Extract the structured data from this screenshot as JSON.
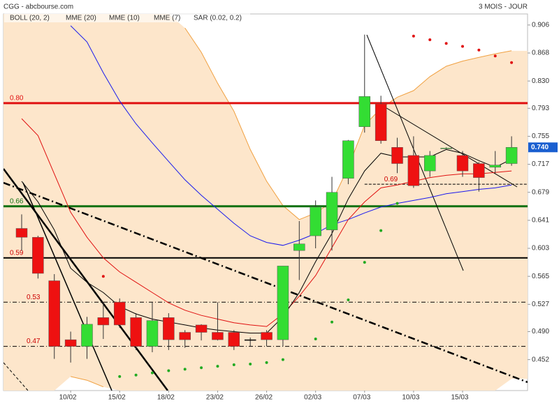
{
  "chart_data": {
    "type": "candlestick",
    "title": "CGG - abcbourse.com",
    "subtitle": "3 MOIS - JOUR",
    "categories": [
      null,
      null,
      null,
      "10/02",
      null,
      null,
      "15/02",
      null,
      null,
      "18/02",
      null,
      null,
      "23/02",
      null,
      null,
      "26/02",
      null,
      null,
      "02/03",
      null,
      null,
      "07/03",
      null,
      null,
      "10/03",
      null,
      null,
      "15/03",
      null,
      null,
      null
    ],
    "open": [
      0.63,
      0.618,
      0.559,
      0.479,
      0.47,
      0.509,
      0.53,
      0.509,
      0.47,
      0.509,
      0.489,
      0.499,
      0.489,
      0.489,
      0.479,
      0.489,
      0.479,
      0.6,
      0.62,
      0.628,
      0.698,
      0.768,
      0.799,
      0.74,
      0.729,
      0.708,
      0.738,
      0.729,
      0.718,
      0.713,
      0.718
    ],
    "high": [
      0.649,
      0.62,
      0.568,
      0.49,
      0.51,
      0.53,
      0.535,
      0.515,
      0.53,
      0.515,
      0.492,
      0.5,
      0.53,
      0.492,
      0.482,
      0.492,
      0.579,
      0.64,
      0.668,
      0.7,
      0.75,
      0.893,
      0.81,
      0.753,
      0.755,
      0.735,
      0.74,
      0.735,
      0.72,
      0.735,
      0.755
    ],
    "low": [
      0.6,
      0.562,
      0.453,
      0.448,
      0.453,
      0.48,
      0.495,
      0.465,
      0.462,
      0.465,
      0.468,
      0.478,
      0.478,
      0.465,
      0.47,
      0.47,
      0.47,
      0.56,
      0.603,
      0.6,
      0.69,
      0.76,
      0.745,
      0.705,
      0.685,
      0.7,
      0.737,
      0.7,
      0.68,
      0.705,
      0.715
    ],
    "close": [
      0.618,
      0.569,
      0.47,
      0.47,
      0.5,
      0.499,
      0.499,
      0.47,
      0.505,
      0.479,
      0.479,
      0.489,
      0.479,
      0.47,
      0.479,
      0.479,
      0.579,
      0.609,
      0.659,
      0.679,
      0.749,
      0.809,
      0.749,
      0.718,
      0.688,
      0.729,
      0.739,
      0.708,
      0.699,
      0.716,
      0.74
    ],
    "up_color": "#33dd33",
    "down_color": "#ee1111",
    "bollinger": {
      "name": "BOLL (20, 2)",
      "color": "#f0a040",
      "fill": "#fde6cb",
      "upper": [
        null,
        null,
        null,
        null,
        null,
        null,
        null,
        null,
        null,
        null,
        0.902,
        0.869,
        0.827,
        0.789,
        0.737,
        0.694,
        0.661,
        0.642,
        0.651,
        0.666,
        0.713,
        0.77,
        0.793,
        0.808,
        0.817,
        0.836,
        0.85,
        0.857,
        0.862,
        0.867,
        0.871
      ],
      "lower": [
        null,
        null,
        null,
        0.429,
        0.424,
        0.415,
        null,
        null,
        null,
        null,
        null,
        null,
        null,
        null,
        null,
        null,
        null,
        null,
        null,
        null,
        null,
        null,
        null,
        null,
        null,
        null,
        null,
        null,
        null,
        null,
        0.426
      ]
    },
    "series": [
      {
        "name": "MME (20)",
        "color": "#1a1aee",
        "values": [
          null,
          null,
          null,
          0.905,
          0.883,
          0.841,
          0.803,
          0.772,
          0.746,
          0.721,
          0.696,
          0.675,
          0.656,
          0.637,
          0.62,
          0.611,
          0.607,
          0.614,
          0.623,
          0.635,
          0.642,
          0.651,
          0.659,
          0.664,
          0.668,
          0.672,
          0.677,
          0.68,
          0.683,
          0.685,
          0.689
        ]
      },
      {
        "name": "MME (10)",
        "color": "#e01010",
        "values": [
          0.779,
          0.756,
          0.704,
          0.652,
          0.618,
          0.59,
          0.571,
          0.557,
          0.543,
          0.529,
          0.519,
          0.512,
          0.507,
          0.502,
          0.499,
          0.497,
          0.514,
          0.538,
          0.566,
          0.604,
          0.642,
          0.666,
          0.685,
          0.689,
          0.694,
          0.699,
          0.702,
          0.704,
          0.704,
          0.706,
          0.708
        ]
      },
      {
        "name": "MME (7)",
        "color": "#000000",
        "values": [
          0.694,
          0.666,
          0.628,
          0.576,
          0.557,
          0.543,
          0.524,
          0.514,
          0.507,
          0.503,
          0.499,
          0.495,
          0.492,
          0.49,
          0.488,
          0.488,
          0.51,
          0.543,
          0.585,
          0.623,
          0.67,
          0.708,
          0.732,
          0.727,
          0.727,
          0.727,
          0.737,
          0.732,
          0.722,
          0.713,
          0.724
        ]
      }
    ],
    "sar": {
      "name": "SAR (0.02, 0.2)",
      "color": "#e01010",
      "values": [
        null,
        null,
        null,
        null,
        null,
        0.565,
        0.429,
        0.431,
        0.434,
        0.437,
        0.439,
        0.441,
        0.443,
        0.445,
        0.446,
        0.448,
        0.452,
        null,
        0.48,
        0.503,
        0.533,
        0.584,
        0.627,
        0.664,
        0.891,
        0.886,
        0.881,
        0.877,
        0.872,
        0.864,
        0.855
      ],
      "colors": [
        null,
        null,
        null,
        null,
        null,
        "#e01010",
        "#22aa22",
        "#22aa22",
        "#22aa22",
        "#22aa22",
        "#22aa22",
        "#22aa22",
        "#22aa22",
        "#22aa22",
        "#22aa22",
        "#22aa22",
        "#22aa22",
        null,
        "#22aa22",
        "#22aa22",
        "#22aa22",
        "#22aa22",
        "#22aa22",
        "#22aa22",
        "#e01010",
        "#e01010",
        "#e01010",
        "#e01010",
        "#e01010",
        "#e01010",
        "#e01010"
      ]
    },
    "levels": [
      {
        "value": 0.8,
        "label": "0.80",
        "color": "#e01010",
        "width": 3,
        "dash": "none",
        "from": 0
      },
      {
        "value": 0.66,
        "label": "0.66",
        "color": "#107010",
        "width": 3,
        "dash": "none",
        "from": 0
      },
      {
        "value": 0.59,
        "label": "0.59",
        "color": "#000000",
        "width": 2,
        "dash": "none",
        "from": 0
      },
      {
        "value": 0.53,
        "label": "0.53",
        "color": "#000000",
        "width": 1,
        "dash": "6 3 1 3",
        "from": 0
      },
      {
        "value": 0.47,
        "label": "0.47",
        "color": "#000000",
        "width": 1,
        "dash": "6 3 1 3",
        "from": 0
      },
      {
        "value": 0.69,
        "label": "0.69",
        "color": "#000000",
        "width": 1,
        "dash": "4 2",
        "from": 21
      }
    ],
    "ylim": [
      0.41,
      0.921
    ],
    "yticks": [
      0.906,
      0.868,
      {
        "value": 0.83,
        "label": "0.830"
      },
      0.793,
      0.755,
      0.717,
      0.679,
      0.641,
      0.603,
      0.565,
      0.527,
      {
        "value": 0.49,
        "label": "0.490"
      },
      0.452
    ],
    "last_price": {
      "value": 0.74,
      "label": "0.740",
      "color": "#1a5fd0"
    }
  }
}
